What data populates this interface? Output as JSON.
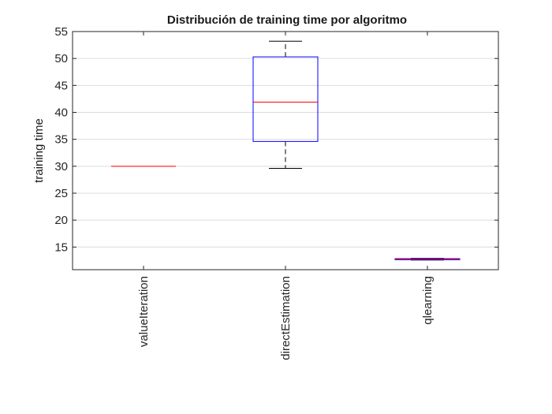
{
  "chart_data": {
    "type": "box",
    "title": "Distribución de training time por algoritmo",
    "xlabel": "",
    "ylabel": "training time",
    "ylim": [
      10.8,
      55
    ],
    "yticks": [
      15,
      20,
      25,
      30,
      35,
      40,
      45,
      50,
      55
    ],
    "grid": "horizontal",
    "categories": [
      "valueIteration",
      "directEstimation",
      "qlearning"
    ],
    "boxes": [
      {
        "category": "valueIteration",
        "whisker_low": 30.0,
        "q1": 30.0,
        "median": 30.0,
        "q3": 30.0,
        "whisker_high": 30.0
      },
      {
        "category": "directEstimation",
        "whisker_low": 29.6,
        "q1": 34.6,
        "median": 41.9,
        "q3": 50.3,
        "whisker_high": 53.2
      },
      {
        "category": "qlearning",
        "whisker_low": 12.6,
        "q1": 12.65,
        "median": 12.75,
        "q3": 12.85,
        "whisker_high": 12.9
      }
    ],
    "colors": {
      "box": "#0000ff",
      "median": "#ff0000",
      "whisker": "#000000",
      "grid": "#dcdcdc",
      "axis": "#262626"
    }
  }
}
